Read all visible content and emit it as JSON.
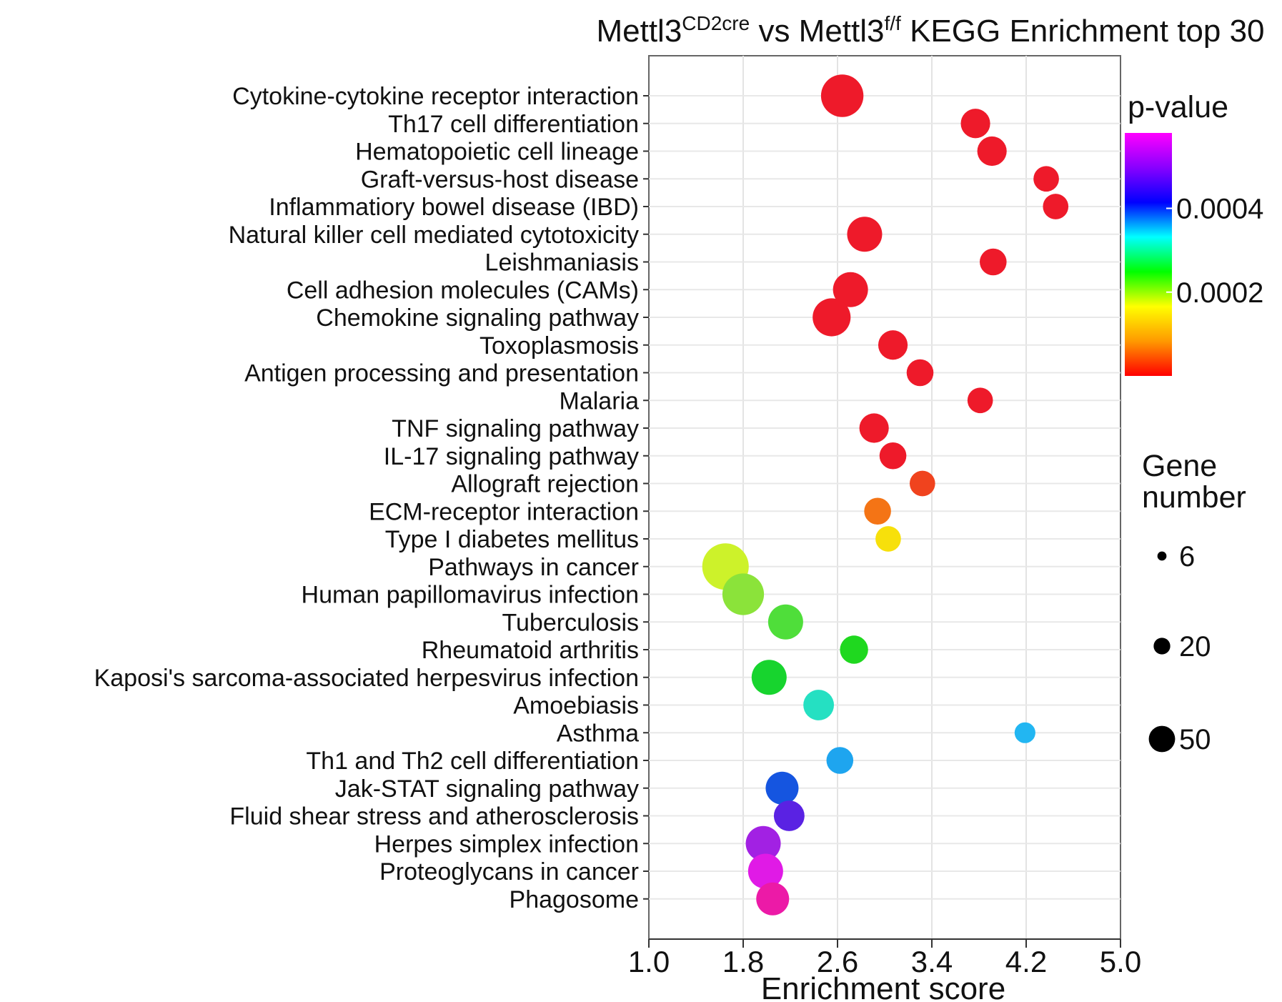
{
  "chart_data": {
    "type": "scatter",
    "title": {
      "main": "Mettl3",
      "sup1": "CD2cre",
      "mid": " vs Mettl3",
      "sup2": "f/f",
      "rest": " KEGG Enrichment top 30"
    },
    "xlabel": "Enrichment  score",
    "xlim": [
      1.0,
      5.0
    ],
    "xticks": [
      1.0,
      1.8,
      2.6,
      3.4,
      4.2,
      5.0
    ],
    "xtick_labels": [
      "1.0",
      "1.8",
      "2.6",
      "3.4",
      "4.2",
      "5.0"
    ],
    "color_legend": {
      "title": "p-value",
      "ticks": [
        0.0004,
        0.0002
      ],
      "tick_labels": [
        "0.0004",
        "0.0002"
      ],
      "range": [
        0,
        0.00058
      ],
      "colors": [
        "#ff0000",
        "#ff9900",
        "#ffff00",
        "#00ff00",
        "#00ffff",
        "#0000ff",
        "#8800ff",
        "#ff00ff"
      ]
    },
    "size_legend": {
      "title_line1": "Gene",
      "title_line2": "number",
      "values": [
        6,
        20,
        50
      ],
      "labels": [
        "6",
        "20",
        "50"
      ]
    },
    "points": [
      {
        "pathway": "Cytokine-cytokine receptor interaction",
        "enrichment": 2.64,
        "genes": 50,
        "color": "#ee1a2a"
      },
      {
        "pathway": "Th17 cell differentiation",
        "enrichment": 3.77,
        "genes": 24,
        "color": "#ee1a2a"
      },
      {
        "pathway": "Hematopoietic cell lineage",
        "enrichment": 3.91,
        "genes": 24,
        "color": "#ee1a2a"
      },
      {
        "pathway": "Graft-versus-host disease",
        "enrichment": 4.37,
        "genes": 18,
        "color": "#ee1a2a"
      },
      {
        "pathway": "Inflammatiory bowel disease (IBD)",
        "enrichment": 4.45,
        "genes": 18,
        "color": "#ee1a2a"
      },
      {
        "pathway": "Natural killer cell mediated cytotoxicity",
        "enrichment": 2.83,
        "genes": 34,
        "color": "#ee1a2a"
      },
      {
        "pathway": "Leishmaniasis",
        "enrichment": 3.92,
        "genes": 20,
        "color": "#ee1a2a"
      },
      {
        "pathway": "Cell adhesion molecules (CAMs)",
        "enrichment": 2.71,
        "genes": 34,
        "color": "#ee1a2a"
      },
      {
        "pathway": "Chemokine signaling pathway",
        "enrichment": 2.55,
        "genes": 40,
        "color": "#ee1a2a"
      },
      {
        "pathway": "Toxoplasmosis",
        "enrichment": 3.07,
        "genes": 24,
        "color": "#ee1a2a"
      },
      {
        "pathway": "Antigen processing and presentation",
        "enrichment": 3.3,
        "genes": 20,
        "color": "#ee1a2a"
      },
      {
        "pathway": "Malaria",
        "enrichment": 3.81,
        "genes": 18,
        "color": "#ee1a2a"
      },
      {
        "pathway": "TNF signaling pathway",
        "enrichment": 2.91,
        "genes": 24,
        "color": "#ee1a2a"
      },
      {
        "pathway": "IL-17 signaling pathway",
        "enrichment": 3.07,
        "genes": 20,
        "color": "#ee1a2a"
      },
      {
        "pathway": "Allograft rejection",
        "enrichment": 3.32,
        "genes": 18,
        "color": "#f0431e"
      },
      {
        "pathway": "ECM-receptor interaction",
        "enrichment": 2.94,
        "genes": 20,
        "color": "#f47415"
      },
      {
        "pathway": "Type I diabetes mellitus",
        "enrichment": 3.03,
        "genes": 18,
        "color": "#f7e00b"
      },
      {
        "pathway": "Pathways in cancer",
        "enrichment": 1.65,
        "genes": 60,
        "color": "#cdf22a"
      },
      {
        "pathway": "Human papillomavirus infection",
        "enrichment": 1.8,
        "genes": 48,
        "color": "#8be33a"
      },
      {
        "pathway": "Tuberculosis",
        "enrichment": 2.16,
        "genes": 34,
        "color": "#4fde3a"
      },
      {
        "pathway": "Rheumatoid arthritis",
        "enrichment": 2.74,
        "genes": 22,
        "color": "#1fd81f"
      },
      {
        "pathway": "Kaposi's sarcoma-associated herpesvirus infection",
        "enrichment": 2.02,
        "genes": 34,
        "color": "#17d42e"
      },
      {
        "pathway": "Amoebiasis",
        "enrichment": 2.44,
        "genes": 26,
        "color": "#25e0c2"
      },
      {
        "pathway": "Asthma",
        "enrichment": 4.19,
        "genes": 12,
        "color": "#22b6f2"
      },
      {
        "pathway": "Th1 and Th2 cell differentiation",
        "enrichment": 2.62,
        "genes": 20,
        "color": "#1ea5ef"
      },
      {
        "pathway": "Jak-STAT signaling pathway",
        "enrichment": 2.13,
        "genes": 30,
        "color": "#1555e0"
      },
      {
        "pathway": "Fluid shear stress and atherosclerosis",
        "enrichment": 2.19,
        "genes": 26,
        "color": "#5a22e3"
      },
      {
        "pathway": "Herpes simplex infection",
        "enrichment": 1.97,
        "genes": 34,
        "color": "#a221e3"
      },
      {
        "pathway": "Proteoglycans in cancer",
        "enrichment": 1.99,
        "genes": 34,
        "color": "#e01ae6"
      },
      {
        "pathway": "Phagosome",
        "enrichment": 2.05,
        "genes": 30,
        "color": "#ec1aa7"
      }
    ]
  }
}
